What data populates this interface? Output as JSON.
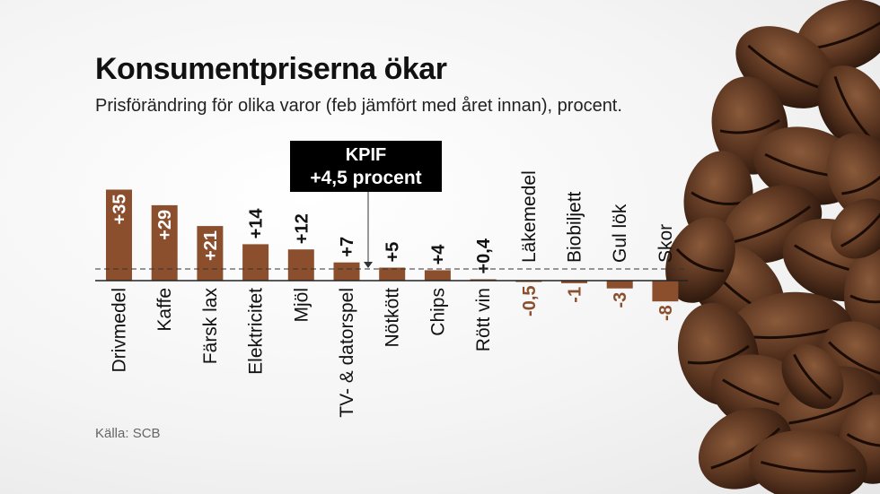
{
  "title": "Konsumentpriserna ökar",
  "subtitle": "Prisförändring för olika varor (feb jämfört med året innan), procent.",
  "source": "Källa: SCB",
  "kpif_box": {
    "line1": "KPIF",
    "line2": "+4,5 procent"
  },
  "colors": {
    "bar": "#8b4f2e",
    "text": "#111111",
    "label_inside": "#ffffff",
    "label_negative": "#8b4f2e"
  },
  "chart_data": {
    "type": "bar",
    "categories": [
      "Drivmedel",
      "Kaffe",
      "Färsk lax",
      "Elektricitet",
      "Mjöl",
      "TV- & datorspel",
      "Nötkött",
      "Chips",
      "Rött vin",
      "Läkemedel",
      "Biobiljett",
      "Gul lök",
      "Skor"
    ],
    "values": [
      35,
      29,
      21,
      14,
      12,
      7,
      5,
      4,
      0.4,
      -0.5,
      -1,
      -3,
      -8
    ],
    "value_labels": [
      "+35",
      "+29",
      "+21",
      "+14",
      "+12",
      "+7",
      "+5",
      "+4",
      "+0,4",
      "-0,5",
      "-1",
      "-3",
      "-8"
    ],
    "reference_line": {
      "value": 4.5,
      "label": "KPIF +4,5 procent",
      "style": "dashed"
    },
    "xlabel": "",
    "ylabel": "",
    "grid": false,
    "legend": "none"
  }
}
